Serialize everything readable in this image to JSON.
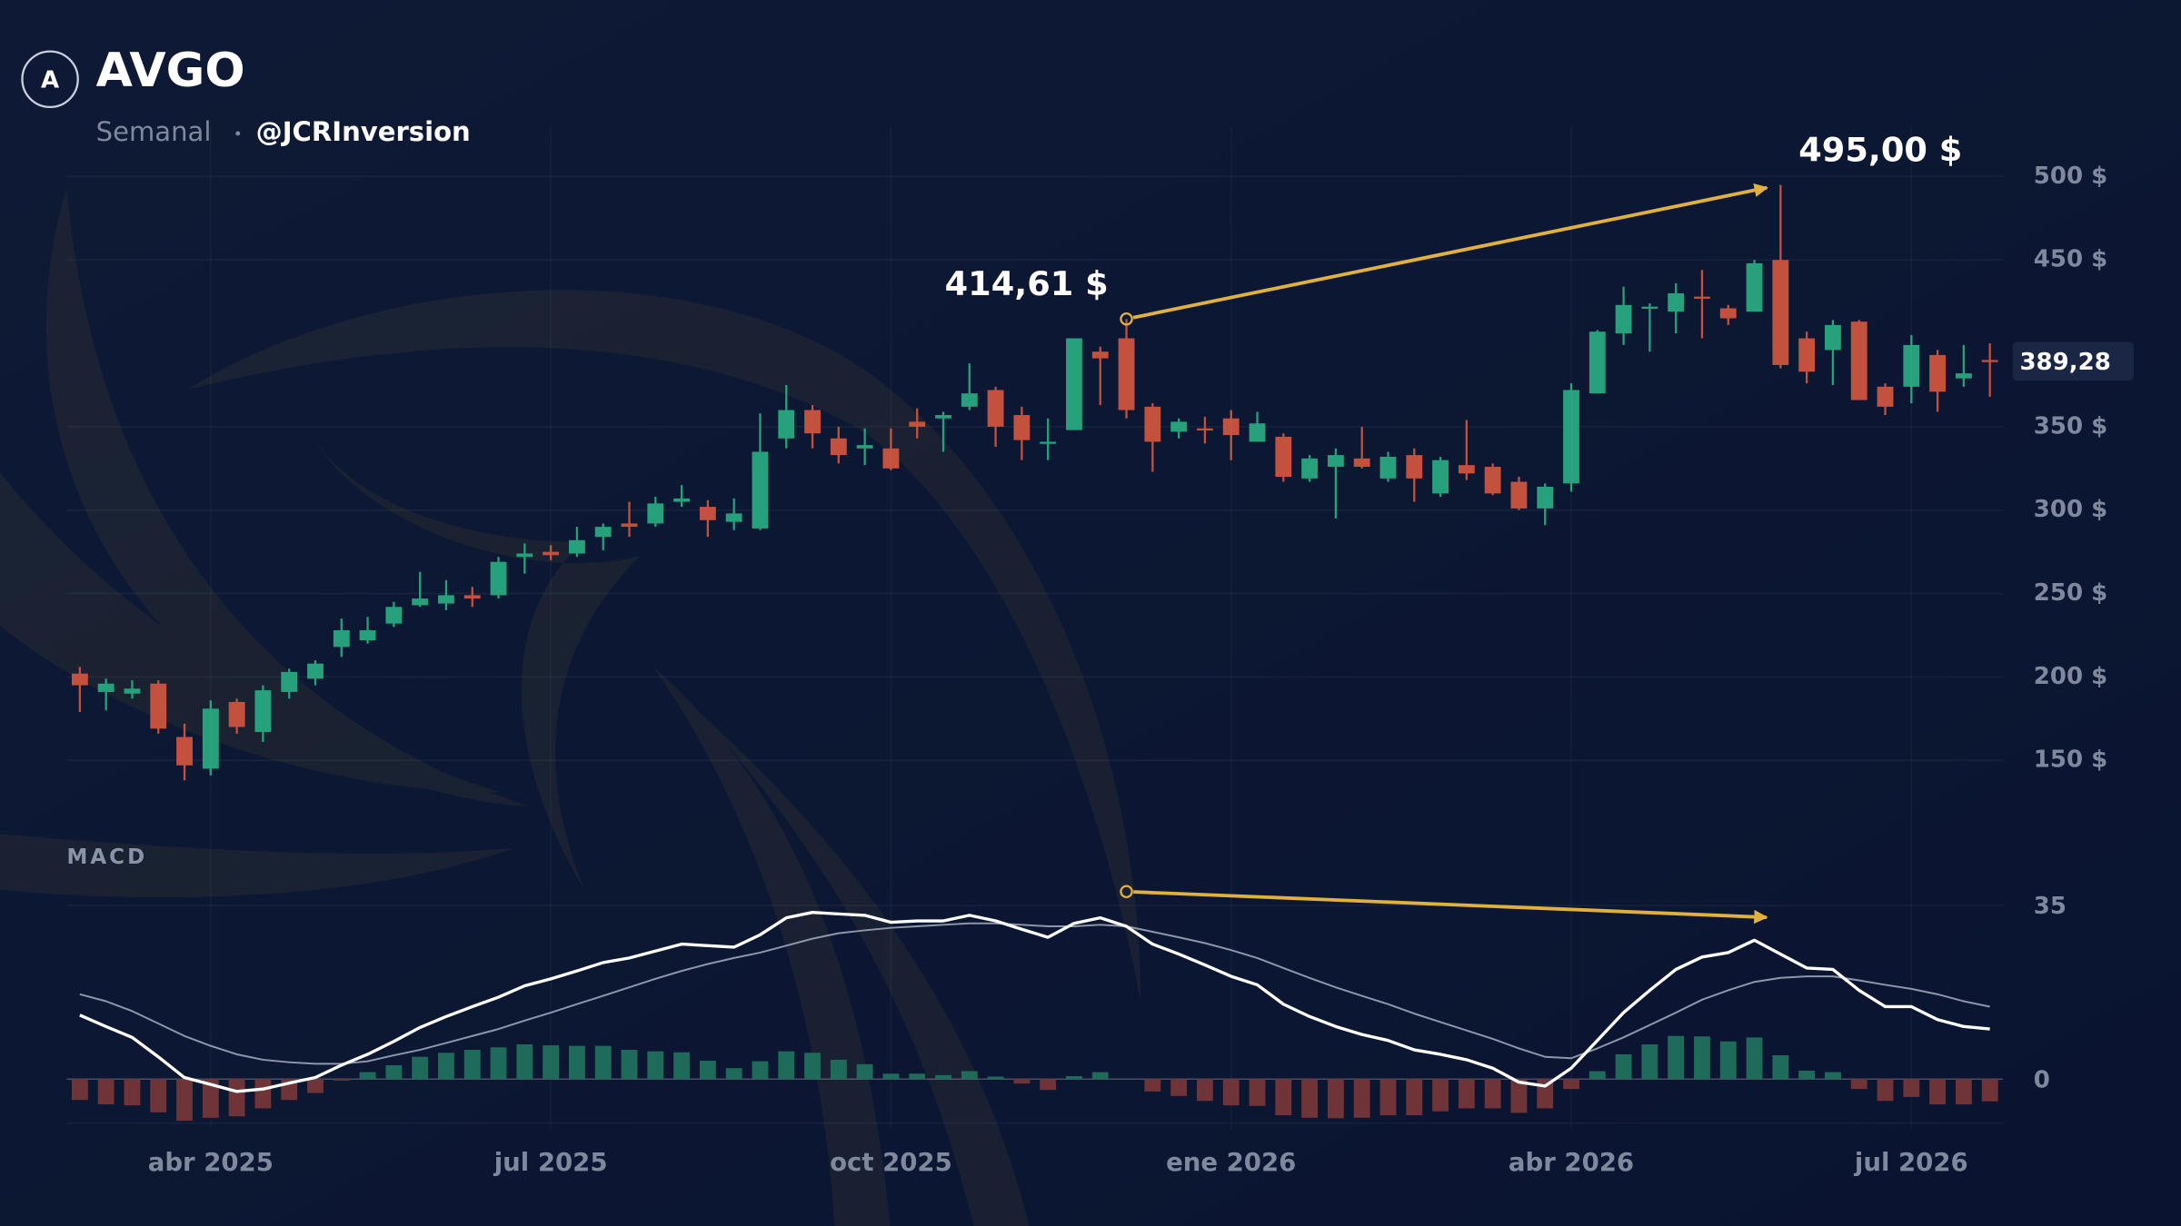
{
  "header": {
    "logo": "A",
    "title": "AVGO",
    "timeframe": "Semanal",
    "author": "@JCRInversion"
  },
  "chart_data": [
    {
      "type": "candlestick",
      "up_color": "#26a17b",
      "down_color": "#c4503e",
      "xlim": [
        -0.5,
        73.5
      ],
      "ylim": [
        130,
        530
      ],
      "yticks": [
        {
          "value": 150,
          "label": "150 $"
        },
        {
          "value": 200,
          "label": "200 $"
        },
        {
          "value": 250,
          "label": "250 $"
        },
        {
          "value": 300,
          "label": "300 $"
        },
        {
          "value": 350,
          "label": "350 $"
        },
        {
          "value": 450,
          "label": "450 $"
        },
        {
          "value": 500,
          "label": "500 $"
        }
      ],
      "grid": true,
      "open": [
        202,
        191,
        190,
        196,
        164,
        145,
        185,
        167,
        191,
        199,
        218,
        222,
        232,
        243,
        244,
        249,
        249,
        272,
        275,
        274,
        284,
        292,
        292,
        305,
        302,
        293,
        289,
        343,
        360,
        343,
        337,
        337,
        353,
        355,
        362,
        372,
        357,
        340,
        348,
        395,
        403,
        362,
        347,
        349,
        355,
        341,
        344,
        319,
        326,
        331,
        319,
        333,
        310,
        327,
        326,
        317,
        301,
        316,
        370,
        406,
        421,
        419,
        428,
        421,
        419,
        450,
        403,
        396,
        413,
        374,
        374,
        393,
        379,
        390
      ],
      "high": [
        206,
        199,
        198,
        198,
        172,
        186,
        187,
        195,
        205,
        210,
        235,
        236,
        245,
        263,
        258,
        254,
        272,
        280,
        279,
        290,
        292,
        305,
        308,
        315,
        306,
        307,
        358,
        375,
        363,
        350,
        349,
        349,
        361,
        359,
        388,
        374,
        362,
        355,
        403,
        398,
        414.61,
        364,
        355,
        356,
        360,
        359,
        346,
        333,
        337,
        350,
        335,
        337,
        332,
        354,
        328,
        320,
        316,
        376,
        408,
        434,
        424,
        436,
        444,
        423,
        450,
        495,
        407,
        414,
        414,
        376,
        405,
        396,
        399,
        400
      ],
      "low": [
        179,
        180,
        187,
        166,
        138,
        141,
        166,
        161,
        187,
        195,
        212,
        220,
        230,
        242,
        240,
        242,
        247,
        262,
        270,
        272,
        276,
        284,
        290,
        302,
        284,
        288,
        288,
        337,
        337,
        328,
        327,
        324,
        343,
        335,
        360,
        338,
        330,
        330,
        348,
        363,
        355,
        323,
        343,
        340,
        330,
        341,
        317,
        317,
        295,
        325,
        317,
        305,
        308,
        318,
        309,
        300,
        291,
        311,
        370,
        399,
        395,
        406,
        403,
        411,
        420,
        385,
        376,
        375,
        366,
        357,
        364,
        359,
        374,
        368
      ],
      "close": [
        195,
        196,
        193,
        169,
        147,
        181,
        170,
        192,
        203,
        208,
        228,
        228,
        242,
        247,
        249,
        247,
        269,
        274,
        273,
        282,
        290,
        290,
        304,
        307,
        294,
        298,
        335,
        360,
        346,
        333,
        339,
        325,
        350,
        357,
        370,
        350,
        342,
        341,
        403,
        391,
        360,
        341,
        353,
        348,
        345,
        352,
        320,
        331,
        333,
        326,
        332,
        319,
        330,
        322,
        310,
        301,
        314,
        372,
        407,
        423,
        422,
        430,
        427,
        415,
        448,
        387,
        383,
        411,
        366,
        362,
        399,
        371,
        382,
        389.28
      ],
      "last_price": {
        "value": 389.28,
        "label": "389,28"
      },
      "annotations": [
        {
          "index": 40,
          "value": 414.61,
          "label": "414,61 $"
        },
        {
          "index": 65,
          "value": 495,
          "label": "495,00 $"
        }
      ],
      "arrow_color": "#e0b13c"
    },
    {
      "type": "macd",
      "title": "MACD",
      "xlim": [
        -0.5,
        73.5
      ],
      "xticks": [
        {
          "value": 5,
          "label": "abr 2025"
        },
        {
          "value": 18,
          "label": "jul 2025"
        },
        {
          "value": 31,
          "label": "oct 2025"
        },
        {
          "value": 44,
          "label": "ene 2026"
        },
        {
          "value": 57,
          "label": "abr 2026"
        },
        {
          "value": 70,
          "label": "jul 2026"
        }
      ],
      "ylim": [
        -10,
        41
      ],
      "yticks": [
        0,
        35
      ],
      "lines": [
        {
          "color": "#ffffff",
          "values": [
            12.9,
            10.6,
            8.4,
            4.5,
            0.3,
            -1.1,
            -2.5,
            -2.0,
            -0.8,
            0.3,
            2.8,
            5.0,
            7.6,
            10.4,
            12.6,
            14.6,
            16.5,
            18.8,
            20.2,
            21.8,
            23.5,
            24.4,
            25.8,
            27.2,
            26.9,
            26.6,
            29.1,
            32.5,
            33.6,
            33.3,
            33.0,
            31.6,
            31.9,
            31.9,
            33.0,
            31.9,
            30.2,
            28.6,
            31.4,
            32.5,
            30.8,
            27.2,
            25.2,
            23.0,
            20.7,
            19.0,
            15.1,
            12.6,
            10.6,
            9.0,
            7.8,
            5.9,
            5.0,
            3.9,
            2.2,
            -0.6,
            -1.4,
            2.2,
            7.8,
            13.4,
            17.9,
            22.1,
            24.6,
            25.5,
            28.0,
            25.2,
            22.4,
            22.1,
            17.9,
            14.6,
            14.6,
            12.0,
            10.6,
            10.1
          ]
        },
        {
          "color": "#8e96aa",
          "values": [
            17.1,
            15.7,
            13.7,
            11.2,
            8.7,
            6.7,
            5.0,
            3.9,
            3.4,
            3.1,
            3.1,
            3.6,
            4.8,
            5.9,
            7.3,
            8.7,
            10.1,
            11.8,
            13.4,
            15.1,
            16.8,
            18.5,
            20.2,
            21.8,
            23.2,
            24.4,
            25.5,
            26.9,
            28.3,
            29.4,
            30.0,
            30.5,
            30.8,
            31.1,
            31.4,
            31.4,
            31.1,
            30.8,
            30.8,
            31.1,
            30.8,
            29.7,
            28.6,
            27.4,
            26.0,
            24.4,
            22.4,
            20.4,
            18.5,
            16.8,
            15.1,
            13.2,
            11.5,
            9.8,
            8.1,
            6.2,
            4.5,
            4.2,
            6.2,
            8.4,
            10.9,
            13.4,
            16.0,
            17.9,
            19.6,
            20.4,
            20.7,
            20.7,
            19.9,
            19.0,
            18.2,
            17.1,
            15.7,
            14.6
          ]
        }
      ],
      "histogram": {
        "up_color": "#1f6b5a",
        "down_color": "#6e3437",
        "values": [
          -4.2,
          -5.1,
          -5.3,
          -6.7,
          -8.4,
          -7.8,
          -7.5,
          -5.9,
          -4.2,
          -2.8,
          -0.3,
          1.4,
          2.8,
          4.5,
          5.3,
          5.9,
          6.4,
          7.0,
          6.8,
          6.7,
          6.7,
          5.9,
          5.6,
          5.4,
          3.7,
          2.2,
          3.6,
          5.6,
          5.3,
          3.9,
          3.0,
          1.1,
          1.1,
          0.8,
          1.6,
          0.5,
          -0.9,
          -2.2,
          0.6,
          1.4,
          0.0,
          -2.5,
          -3.4,
          -4.4,
          -5.3,
          -5.4,
          -7.3,
          -7.8,
          -7.9,
          -7.8,
          -7.3,
          -7.3,
          -6.5,
          -5.9,
          -5.9,
          -6.8,
          -5.9,
          -2.0,
          1.6,
          5.0,
          7.0,
          8.7,
          8.6,
          7.6,
          8.4,
          4.8,
          1.7,
          1.4,
          -2.0,
          -4.4,
          -3.6,
          -5.1,
          -5.1,
          -4.5
        ]
      },
      "arrow": {
        "x": [
          40,
          65
        ],
        "values": [
          37.8,
          32.5
        ]
      },
      "arrow_color": "#e0b13c"
    }
  ]
}
